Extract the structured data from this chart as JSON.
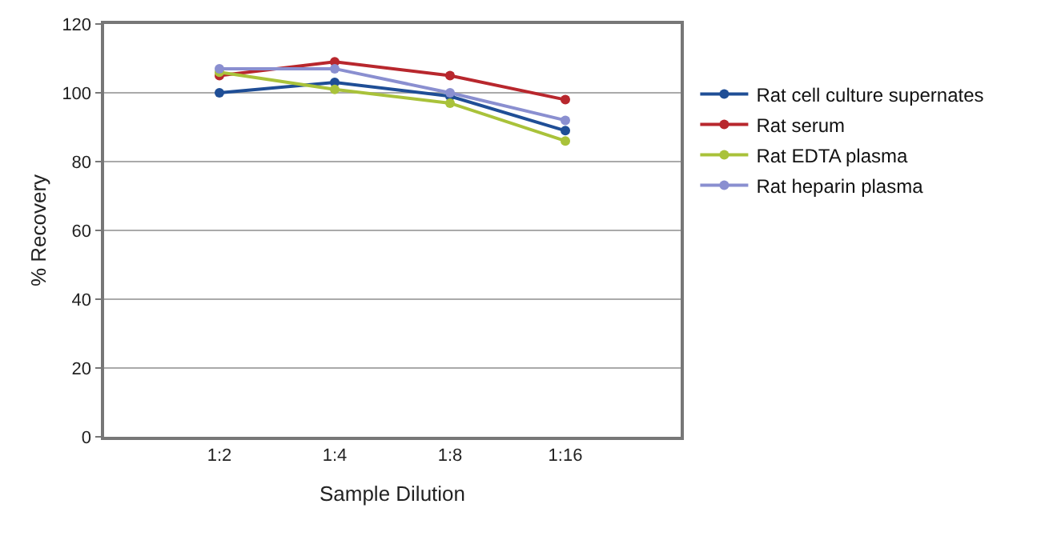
{
  "chart_data": {
    "type": "line",
    "xlabel": "Sample Dilution",
    "ylabel": "% Recovery",
    "categories": [
      "1:2",
      "1:4",
      "1:8",
      "1:16"
    ],
    "series": [
      {
        "name": "Rat cell culture supernates",
        "color": "#1f4e96",
        "values": [
          100,
          103,
          99,
          89
        ]
      },
      {
        "name": "Rat serum",
        "color": "#b8272d",
        "values": [
          105,
          109,
          105,
          98
        ]
      },
      {
        "name": "Rat EDTA plasma",
        "color": "#a9c23a",
        "values": [
          106,
          101,
          97,
          86
        ]
      },
      {
        "name": "Rat heparin plasma",
        "color": "#8a8fd0",
        "values": [
          107,
          107,
          100,
          92
        ]
      }
    ],
    "ylim": [
      0,
      120
    ],
    "yticks": [
      0,
      20,
      40,
      60,
      80,
      100,
      120
    ],
    "grid": "y",
    "legend": "right",
    "marker": "circle",
    "line_style": "solid"
  }
}
